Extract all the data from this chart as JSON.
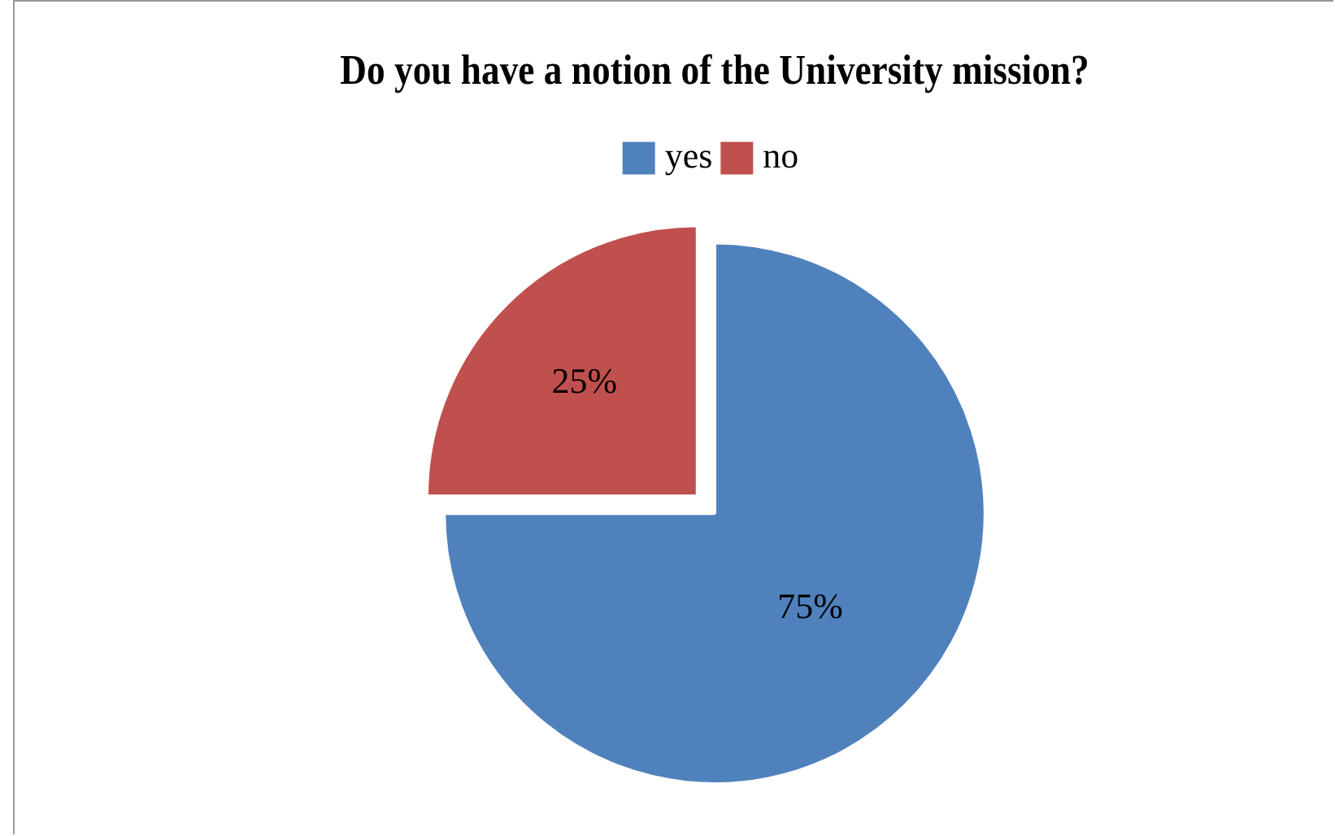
{
  "chart_data": {
    "type": "pie",
    "title": "Do you have a notion of the University mission?",
    "categories": [
      "yes",
      "no"
    ],
    "values": [
      75,
      25
    ],
    "colors": [
      "#4f81bd",
      "#c0504d"
    ],
    "legend": "top",
    "value_labels": [
      "75%",
      "25%"
    ]
  }
}
